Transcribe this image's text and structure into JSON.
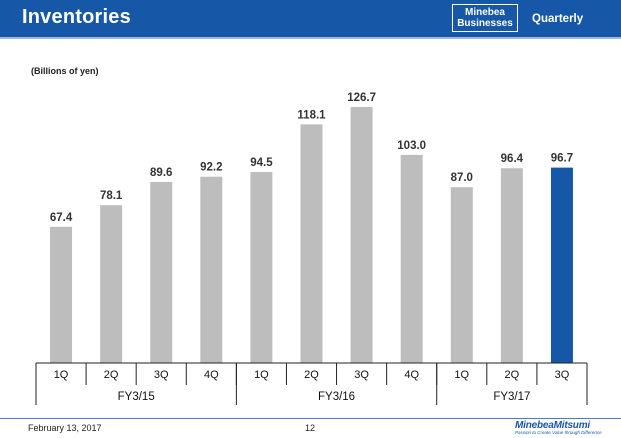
{
  "header": {
    "title": "Inventories",
    "badge_line1": "Minebea",
    "badge_line2": "Businesses",
    "period": "Quarterly"
  },
  "colors": {
    "header_bg": "#1757a8",
    "bar_default": "#bdbdbd",
    "bar_highlight": "#1757a8"
  },
  "chart_data": {
    "type": "bar",
    "unit_label": "(Billions of yen)",
    "categories": [
      "1Q",
      "2Q",
      "3Q",
      "4Q",
      "1Q",
      "2Q",
      "3Q",
      "4Q",
      "1Q",
      "2Q",
      "3Q"
    ],
    "groups": [
      {
        "label": "FY3/15",
        "count": 4
      },
      {
        "label": "FY3/16",
        "count": 4
      },
      {
        "label": "FY3/17",
        "count": 3
      }
    ],
    "values": [
      67.4,
      78.1,
      89.6,
      92.2,
      94.5,
      118.1,
      126.7,
      103.0,
      87.0,
      96.4,
      96.7
    ],
    "value_labels": [
      "67.4",
      "78.1",
      "89.6",
      "92.2",
      "94.5",
      "118.1",
      "126.7",
      "103.0",
      "87.0",
      "96.4",
      "96.7"
    ],
    "highlight_index": 10,
    "ylim": [
      0,
      126.7
    ],
    "grid": false,
    "legend": "none"
  },
  "footer": {
    "date": "February 13, 2017",
    "page": "12",
    "logo_name": "MinebeaMitsumi",
    "logo_tagline": "Passion to Create Value through Difference"
  }
}
